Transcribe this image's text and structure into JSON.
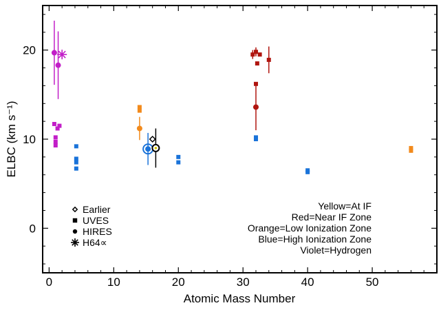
{
  "chart_data": {
    "type": "scatter",
    "xlabel": "Atomic Mass Number",
    "ylabel": "ELBC (km s⁻¹)",
    "xlim": [
      -1,
      60
    ],
    "ylim": [
      -5,
      25
    ],
    "xticks": [
      0,
      10,
      20,
      30,
      40,
      50
    ],
    "yticks": [
      0,
      10,
      20
    ],
    "grid": false,
    "colors": {
      "yellow": "#d4c400",
      "red": "#b0150f",
      "orange": "#f28a1c",
      "blue": "#1a73d9",
      "violet": "#c21ec8",
      "black": "#000000"
    },
    "legend": {
      "position": "bottom-left",
      "items": [
        {
          "marker": "diamond",
          "label": "Earlier"
        },
        {
          "marker": "square",
          "label": "UVES"
        },
        {
          "marker": "circle",
          "label": "HIRES"
        },
        {
          "marker": "asterisk",
          "label": "H64∝"
        }
      ]
    },
    "annotations": [
      "Yellow=At IF",
      "Red=Near IF Zone",
      "Orange=Low Ionization Zone",
      "Blue=High Ionization Zone",
      "Violet=Hydrogen"
    ],
    "series": [
      {
        "zone": "violet",
        "marker": "circle",
        "points": [
          {
            "x": 0.8,
            "y": 19.7,
            "err": 3.6
          },
          {
            "x": 1.4,
            "y": 18.3,
            "err": 3.8
          }
        ]
      },
      {
        "zone": "violet",
        "marker": "asterisk",
        "points": [
          {
            "x": 2.0,
            "y": 19.5,
            "err": 0.3
          }
        ]
      },
      {
        "zone": "violet",
        "marker": "square",
        "points": [
          {
            "x": 0.8,
            "y": 11.7,
            "err": 0
          },
          {
            "x": 1.0,
            "y": 10.2,
            "err": 0
          },
          {
            "x": 1.0,
            "y": 9.7,
            "err": 0
          },
          {
            "x": 1.0,
            "y": 9.3,
            "err": 0
          },
          {
            "x": 1.3,
            "y": 11.2,
            "err": 0
          },
          {
            "x": 1.6,
            "y": 11.5,
            "err": 0
          }
        ]
      },
      {
        "zone": "blue",
        "marker": "square",
        "points": [
          {
            "x": 4.2,
            "y": 9.2,
            "err": 0
          },
          {
            "x": 4.2,
            "y": 7.8,
            "err": 0
          },
          {
            "x": 4.2,
            "y": 7.4,
            "err": 0
          },
          {
            "x": 4.2,
            "y": 6.7,
            "err": 0
          },
          {
            "x": 20.0,
            "y": 8.0,
            "err": 0
          },
          {
            "x": 20.0,
            "y": 7.4,
            "err": 0
          },
          {
            "x": 32.0,
            "y": 10.0,
            "err": 0
          },
          {
            "x": 32.0,
            "y": 10.2,
            "err": 0
          },
          {
            "x": 40.0,
            "y": 6.5,
            "err": 0
          },
          {
            "x": 40.0,
            "y": 6.3,
            "err": 0
          }
        ]
      },
      {
        "zone": "blue",
        "marker": "circle",
        "points": [
          {
            "x": 15.3,
            "y": 8.9,
            "err": 1.8
          }
        ]
      },
      {
        "zone": "orange",
        "marker": "square",
        "points": [
          {
            "x": 14.0,
            "y": 13.6,
            "err": 0
          },
          {
            "x": 14.0,
            "y": 13.2,
            "err": 0
          },
          {
            "x": 56.0,
            "y": 9.0,
            "err": 0
          },
          {
            "x": 56.0,
            "y": 8.7,
            "err": 0
          }
        ]
      },
      {
        "zone": "orange",
        "marker": "circle",
        "points": [
          {
            "x": 14.0,
            "y": 11.2,
            "err": 1.3
          }
        ]
      },
      {
        "zone": "red",
        "marker": "square",
        "points": [
          {
            "x": 31.5,
            "y": 19.5,
            "err": 0.5
          },
          {
            "x": 32.0,
            "y": 19.8,
            "err": 0.5
          },
          {
            "x": 32.2,
            "y": 18.5,
            "err": 0
          },
          {
            "x": 32.6,
            "y": 19.5,
            "err": 0
          },
          {
            "x": 32.0,
            "y": 16.2,
            "err": 0
          },
          {
            "x": 34.0,
            "y": 18.9,
            "err": 1.5
          }
        ]
      },
      {
        "zone": "red",
        "marker": "circle",
        "points": [
          {
            "x": 32.0,
            "y": 13.6,
            "err": 2.6
          }
        ]
      },
      {
        "zone": "black",
        "marker": "diamond",
        "points": [
          {
            "x": 16.0,
            "y": 10.0,
            "err": 0
          }
        ]
      },
      {
        "zone": "black",
        "marker": "circle",
        "points": [
          {
            "x": 16.5,
            "y": 9.0,
            "err": 2.2
          }
        ]
      }
    ]
  }
}
